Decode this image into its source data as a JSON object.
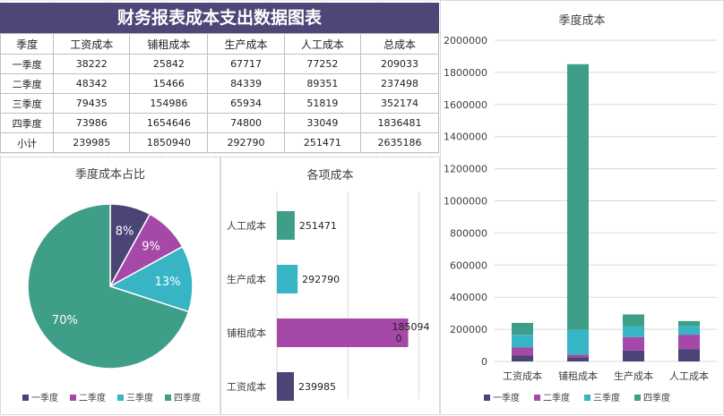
{
  "title": "财务报表成本支出数据图表",
  "table": {
    "headers": [
      "季度",
      "工资成本",
      "铺租成本",
      "生产成本",
      "人工成本",
      "总成本"
    ],
    "rows": [
      [
        "一季度",
        "38222",
        "25842",
        "67717",
        "77252",
        "209033"
      ],
      [
        "二季度",
        "48342",
        "15466",
        "84339",
        "89351",
        "237498"
      ],
      [
        "三季度",
        "79435",
        "154986",
        "65934",
        "51819",
        "352174"
      ],
      [
        "四季度",
        "73986",
        "1654646",
        "74800",
        "33049",
        "1836481"
      ],
      [
        "小计",
        "239985",
        "1850940",
        "292790",
        "251471",
        "2635186"
      ]
    ]
  },
  "colors": [
    "#4b4477",
    "#a548a8",
    "#38b5c5",
    "#3f9e88"
  ],
  "chart_data": [
    {
      "type": "pie",
      "title": "季度成本占比",
      "categories": [
        "一季度",
        "二季度",
        "三季度",
        "四季度"
      ],
      "values": [
        8,
        9,
        13,
        70
      ],
      "labels": [
        "8%",
        "9%",
        "13%",
        "70%"
      ],
      "legend": "bottom"
    },
    {
      "type": "bar",
      "orientation": "horizontal",
      "title": "各项成本",
      "categories": [
        "工资成本",
        "铺租成本",
        "生产成本",
        "人工成本"
      ],
      "values": [
        239985,
        1850940,
        292790,
        251471
      ],
      "labels": [
        "239985",
        "185094\n0",
        "292790",
        "251471"
      ],
      "bar_colors": [
        "#4b4477",
        "#a548a8",
        "#38b5c5",
        "#3f9e88"
      ]
    },
    {
      "type": "bar",
      "stacked": true,
      "title": "季度成本",
      "categories": [
        "工资成本",
        "铺租成本",
        "生产成本",
        "人工成本"
      ],
      "series": [
        {
          "name": "一季度",
          "values": [
            38222,
            25842,
            67717,
            77252
          ]
        },
        {
          "name": "二季度",
          "values": [
            48342,
            15466,
            84339,
            89351
          ]
        },
        {
          "name": "三季度",
          "values": [
            79435,
            154986,
            65934,
            51819
          ]
        },
        {
          "name": "四季度",
          "values": [
            73986,
            1654646,
            74800,
            33049
          ]
        }
      ],
      "ylim": [
        0,
        2000000
      ],
      "yticks": [
        "0",
        "200000",
        "400000",
        "600000",
        "800000",
        "1000000",
        "1200000",
        "1400000",
        "1600000",
        "1800000",
        "2000000"
      ],
      "grid": true,
      "legend": "bottom"
    }
  ]
}
